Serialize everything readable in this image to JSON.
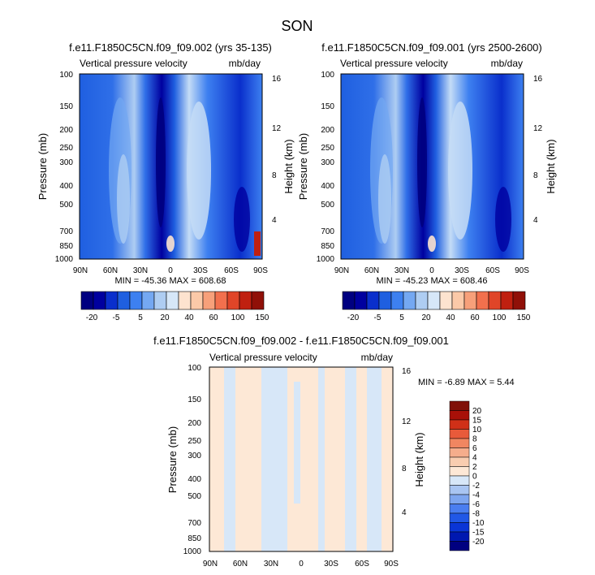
{
  "figure_title": "SON",
  "colors": {
    "main_bar": [
      "#000080",
      "#00009f",
      "#0a2fcc",
      "#1f5fe0",
      "#3d80f0",
      "#74a8f2",
      "#aecdf2",
      "#d6e7f8",
      "#fde3cf",
      "#fbc9a8",
      "#f7a07a",
      "#f2704d",
      "#e04528",
      "#c02010",
      "#901008"
    ],
    "diff_bar": [
      "#000080",
      "#0018b0",
      "#0a35d6",
      "#2158e6",
      "#4a7ef0",
      "#7ea6ef",
      "#a9c5f2",
      "#d7e7f8",
      "#fde8d6",
      "#f9cdb0",
      "#f5ad8c",
      "#f08661",
      "#e85a3a",
      "#d03018",
      "#a81008",
      "#801008"
    ]
  },
  "chart_data": [
    {
      "type": "heatmap",
      "id": "top-left",
      "title": "f.e11.F1850C5CN.f09_f09.002 (yrs 35-135)",
      "left_label": "Vertical pressure velocity",
      "right_label": "mb/day",
      "ylabel": "Pressure (mb)",
      "y2label": "Height (km)",
      "xticks": [
        "90N",
        "60N",
        "30N",
        "0",
        "30S",
        "60S",
        "90S"
      ],
      "yticks": [
        "100",
        "150",
        "200",
        "250",
        "300",
        "400",
        "500",
        "700",
        "850",
        "1000"
      ],
      "y2ticks": [
        "16",
        "12",
        "8",
        "4"
      ],
      "stats_text": "MIN = -45.36   MAX = 608.68",
      "colorbar_labels": [
        "-20",
        "-5",
        "5",
        "20",
        "40",
        "60",
        "100",
        "150"
      ]
    },
    {
      "type": "heatmap",
      "id": "top-right",
      "title": "f.e11.F1850C5CN.f09_f09.001 (yrs 2500-2600)",
      "left_label": "Vertical pressure velocity",
      "right_label": "mb/day",
      "ylabel": "Pressure (mb)",
      "y2label": "Height (km)",
      "xticks": [
        "90N",
        "60N",
        "30N",
        "0",
        "30S",
        "60S",
        "90S"
      ],
      "yticks": [
        "100",
        "150",
        "200",
        "250",
        "300",
        "400",
        "500",
        "700",
        "850",
        "1000"
      ],
      "y2ticks": [
        "16",
        "12",
        "8",
        "4"
      ],
      "stats_text": "MIN = -45.23   MAX = 608.46",
      "colorbar_labels": [
        "-20",
        "-5",
        "5",
        "20",
        "40",
        "60",
        "100",
        "150"
      ]
    },
    {
      "type": "heatmap",
      "id": "bottom-diff",
      "title": "f.e11.F1850C5CN.f09_f09.002 - f.e11.F1850C5CN.f09_f09.001",
      "left_label": "Vertical pressure velocity",
      "right_label": "mb/day",
      "ylabel": "Pressure (mb)",
      "y2label": "Height (km)",
      "xticks": [
        "90N",
        "60N",
        "30N",
        "0",
        "30S",
        "60S",
        "90S"
      ],
      "yticks": [
        "100",
        "150",
        "200",
        "250",
        "300",
        "400",
        "500",
        "700",
        "850",
        "1000"
      ],
      "y2ticks": [
        "16",
        "12",
        "8",
        "4"
      ],
      "stats_text": "MIN =  -6.89  MAX =   5.44",
      "colorbar_labels": [
        "20",
        "15",
        "10",
        "8",
        "6",
        "4",
        "2",
        "0",
        "-2",
        "-4",
        "-6",
        "-8",
        "-10",
        "-15",
        "-20"
      ]
    }
  ]
}
